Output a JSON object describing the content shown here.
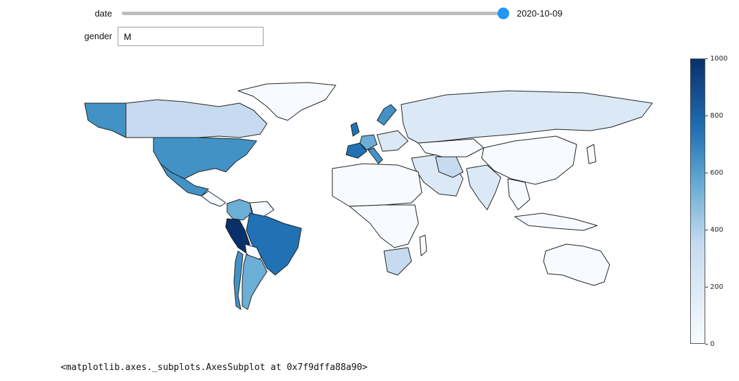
{
  "controls": {
    "date_label": "date",
    "date_value": "2020-10-09",
    "date_slider_position": 1.0,
    "gender_label": "gender",
    "gender_value": "M"
  },
  "colorbar": {
    "min": 0,
    "max": 1000,
    "ticks": [
      "1000",
      "800",
      "600",
      "400",
      "200",
      "0"
    ],
    "colormap": "Blues"
  },
  "output_text": "<matplotlib.axes._subplots.AxesSubplot at 0x7f9dffa88a90>",
  "colors": {
    "accent": "#2196f3",
    "very_light": "#f7fbff",
    "light": "#dbe9f6",
    "light_mid": "#c6dbef",
    "mid": "#6baed6",
    "mid_dark": "#4292c6",
    "dark": "#2171b5",
    "darkest": "#08306b"
  }
}
